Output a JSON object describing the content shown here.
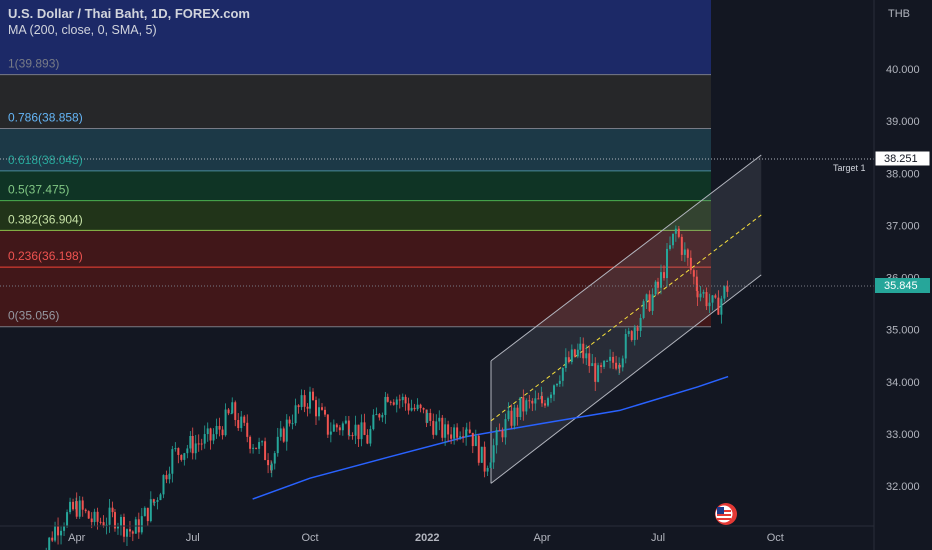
{
  "header": {
    "title": "U.S. Dollar / Thai Baht, 1D, FOREX.com",
    "indicator": "MA (200, close, 0, SMA, 5)"
  },
  "currency": "THB",
  "price_labels": {
    "target_value": "38.251",
    "target_text": "Target 1",
    "current_value": "35.845"
  },
  "fib_levels": [
    {
      "label": "1(39.893)",
      "level": 1,
      "price": 39.893,
      "line_color": "#787b86",
      "fill": "#1c2a6b",
      "text_color": "#787b86"
    },
    {
      "label": "0.786(38.858)",
      "level": 0.786,
      "price": 38.858,
      "line_color": "#787b86",
      "fill": "#2a2a2a",
      "text_color": "#64b5f6"
    },
    {
      "label": "0.618(38.045)",
      "level": 0.618,
      "price": 38.045,
      "line_color": "#4a8a9a",
      "fill": "#1e3f4d",
      "text_color": "#26a69a"
    },
    {
      "label": "0.5(37.475)",
      "level": 0.5,
      "price": 37.475,
      "line_color": "#4caf50",
      "fill": "#0f3a26",
      "text_color": "#81c784"
    },
    {
      "label": "0.382(36.904)",
      "level": 0.382,
      "price": 36.904,
      "line_color": "#8bc34a",
      "fill": "#243a18",
      "text_color": "#c5e1a5"
    },
    {
      "label": "0.236(36.198)",
      "level": 0.236,
      "price": 36.198,
      "line_color": "#f44336",
      "fill": "#4a1818",
      "text_color": "#ef5350"
    },
    {
      "label": "0(35.056)",
      "level": 0,
      "price": 35.056,
      "line_color": "#787b86",
      "fill": "#4a1818",
      "text_color": "#9598a1"
    }
  ],
  "chart_data": {
    "type": "candlestick",
    "title": "U.S. Dollar / Thai Baht, 1D, FOREX.com",
    "x_ticks": [
      "Apr",
      "Jul",
      "Oct",
      "2022",
      "Apr",
      "Jul",
      "Oct"
    ],
    "y_ticks": [
      32.0,
      33.0,
      34.0,
      35.0,
      36.0,
      37.0,
      38.0,
      39.0,
      40.0
    ],
    "ylim": [
      31.4,
      41.2
    ],
    "series": [
      {
        "name": "MA (200, close, 0, SMA, 5)",
        "color": "#2962ff",
        "x": [
          "2021-08-17",
          "2021-10-01",
          "2021-12-01",
          "2022-02-01",
          "2022-04-01",
          "2022-06-01",
          "2022-08-01",
          "2022-08-25"
        ],
        "values": [
          31.75,
          32.15,
          32.55,
          32.95,
          33.2,
          33.45,
          33.9,
          34.1
        ]
      }
    ],
    "candles": [
      {
        "x": "2021-03-01",
        "close": 30.4
      },
      {
        "x": "2021-03-15",
        "close": 31.2
      },
      {
        "x": "2021-04-01",
        "close": 31.6
      },
      {
        "x": "2021-04-15",
        "close": 31.3
      },
      {
        "x": "2021-05-01",
        "close": 31.4
      },
      {
        "x": "2021-05-15",
        "close": 31.1
      },
      {
        "x": "2021-06-01",
        "close": 31.7
      },
      {
        "x": "2021-06-15",
        "close": 32.6
      },
      {
        "x": "2021-07-01",
        "close": 32.8
      },
      {
        "x": "2021-07-15",
        "close": 32.9
      },
      {
        "x": "2021-08-01",
        "close": 33.4
      },
      {
        "x": "2021-08-15",
        "close": 32.9
      },
      {
        "x": "2021-09-01",
        "close": 32.5
      },
      {
        "x": "2021-09-15",
        "close": 33.3
      },
      {
        "x": "2021-10-01",
        "close": 33.7
      },
      {
        "x": "2021-10-15",
        "close": 33.1
      },
      {
        "x": "2021-11-01",
        "close": 33.2
      },
      {
        "x": "2021-11-15",
        "close": 32.9
      },
      {
        "x": "2021-12-01",
        "close": 33.8
      },
      {
        "x": "2021-12-15",
        "close": 33.6
      },
      {
        "x": "2022-01-01",
        "close": 33.3
      },
      {
        "x": "2022-01-15",
        "close": 33.0
      },
      {
        "x": "2022-02-01",
        "close": 33.2
      },
      {
        "x": "2022-02-15",
        "close": 32.4
      },
      {
        "x": "2022-03-01",
        "close": 33.1
      },
      {
        "x": "2022-03-15",
        "close": 33.5
      },
      {
        "x": "2022-04-01",
        "close": 33.6
      },
      {
        "x": "2022-04-15",
        "close": 34.2
      },
      {
        "x": "2022-05-01",
        "close": 34.6
      },
      {
        "x": "2022-05-15",
        "close": 34.1
      },
      {
        "x": "2022-06-01",
        "close": 34.5
      },
      {
        "x": "2022-06-15",
        "close": 35.2
      },
      {
        "x": "2022-07-01",
        "close": 35.8
      },
      {
        "x": "2022-07-15",
        "close": 36.9
      },
      {
        "x": "2022-08-01",
        "close": 35.8
      },
      {
        "x": "2022-08-15",
        "close": 35.4
      },
      {
        "x": "2022-08-25",
        "close": 35.845
      }
    ],
    "channel": {
      "start": "2022-02-20",
      "end": "2022-09-20",
      "lower_start": 32.05,
      "lower_end": 36.05,
      "upper_start": 34.4,
      "upper_end": 38.35,
      "mid_start": 33.25,
      "mid_end": 37.2
    }
  }
}
